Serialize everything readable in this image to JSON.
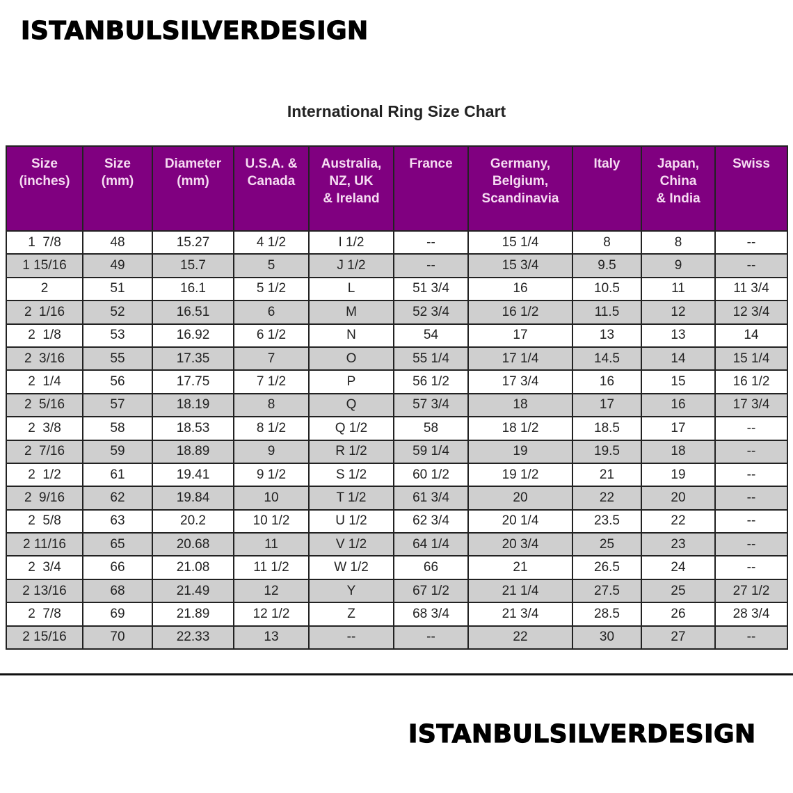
{
  "brand": "ISTANBULSILVERDESIGN",
  "title": "International Ring Size Chart",
  "colors": {
    "header_bg": "#800080",
    "header_text": "#f6dcf2",
    "alt_row": "#cfcfcf"
  },
  "columns": [
    "Size\n(inches)",
    "Size\n(mm)",
    "Diameter\n(mm)",
    "U.S.A. &\nCanada",
    "Australia,\nNZ, UK\n& Ireland",
    "France",
    "Germany,\nBelgium,\nScandinavia",
    "Italy",
    "Japan,\nChina\n& India",
    "Swiss"
  ],
  "rows": [
    [
      "1  7/8",
      "48",
      "15.27",
      "4 1/2",
      "I 1/2",
      "--",
      "15 1/4",
      "8",
      "8",
      "--"
    ],
    [
      "1 15/16",
      "49",
      "15.7",
      "5",
      "J 1/2",
      "--",
      "15 3/4",
      "9.5",
      "9",
      "--"
    ],
    [
      "2",
      "51",
      "16.1",
      "5 1/2",
      "L",
      "51 3/4",
      "16",
      "10.5",
      "11",
      "11 3/4"
    ],
    [
      "2  1/16",
      "52",
      "16.51",
      "6",
      "M",
      "52 3/4",
      "16 1/2",
      "11.5",
      "12",
      "12 3/4"
    ],
    [
      "2  1/8",
      "53",
      "16.92",
      "6 1/2",
      "N",
      "54",
      "17",
      "13",
      "13",
      "14"
    ],
    [
      "2  3/16",
      "55",
      "17.35",
      "7",
      "O",
      "55 1/4",
      "17 1/4",
      "14.5",
      "14",
      "15 1/4"
    ],
    [
      "2  1/4",
      "56",
      "17.75",
      "7 1/2",
      "P",
      "56 1/2",
      "17 3/4",
      "16",
      "15",
      "16 1/2"
    ],
    [
      "2  5/16",
      "57",
      "18.19",
      "8",
      "Q",
      "57 3/4",
      "18",
      "17",
      "16",
      "17 3/4"
    ],
    [
      "2  3/8",
      "58",
      "18.53",
      "8 1/2",
      "Q 1/2",
      "58",
      "18 1/2",
      "18.5",
      "17",
      "--"
    ],
    [
      "2  7/16",
      "59",
      "18.89",
      "9",
      "R 1/2",
      "59 1/4",
      "19",
      "19.5",
      "18",
      "--"
    ],
    [
      "2  1/2",
      "61",
      "19.41",
      "9 1/2",
      "S 1/2",
      "60 1/2",
      "19 1/2",
      "21",
      "19",
      "--"
    ],
    [
      "2  9/16",
      "62",
      "19.84",
      "10",
      "T 1/2",
      "61 3/4",
      "20",
      "22",
      "20",
      "--"
    ],
    [
      "2  5/8",
      "63",
      "20.2",
      "10 1/2",
      "U 1/2",
      "62 3/4",
      "20 1/4",
      "23.5",
      "22",
      "--"
    ],
    [
      "2 11/16",
      "65",
      "20.68",
      "11",
      "V 1/2",
      "64 1/4",
      "20 3/4",
      "25",
      "23",
      "--"
    ],
    [
      "2  3/4",
      "66",
      "21.08",
      "11 1/2",
      "W 1/2",
      "66",
      "21",
      "26.5",
      "24",
      "--"
    ],
    [
      "2 13/16",
      "68",
      "21.49",
      "12",
      "Y",
      "67 1/2",
      "21 1/4",
      "27.5",
      "25",
      "27 1/2"
    ],
    [
      "2  7/8",
      "69",
      "21.89",
      "12 1/2",
      "Z",
      "68 3/4",
      "21 3/4",
      "28.5",
      "26",
      "28 3/4"
    ],
    [
      "2 15/16",
      "70",
      "22.33",
      "13",
      "--",
      "--",
      "22",
      "30",
      "27",
      "--"
    ]
  ]
}
